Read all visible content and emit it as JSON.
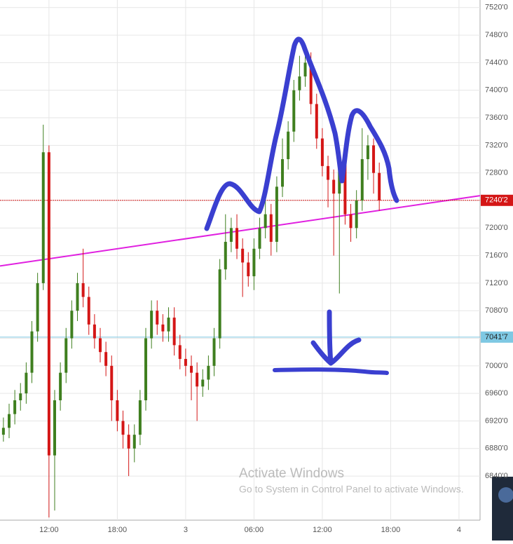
{
  "chart_data": {
    "type": "candlestick",
    "x": [
      8,
      8.5,
      9,
      9.5,
      10,
      10.5,
      11,
      11.5,
      12,
      12.5,
      13,
      13.5,
      14,
      14.5,
      15,
      15.5,
      16,
      16.5,
      17,
      17.5,
      18,
      18.5,
      19,
      19.5,
      20,
      20.5,
      21,
      21.5,
      22,
      22.5,
      23,
      23.5,
      24,
      24.5,
      25,
      25.5,
      26,
      26.5,
      27,
      27.5,
      28,
      28.5,
      29,
      29.5,
      30,
      30.5,
      31,
      31.5,
      32,
      32.5,
      33,
      33.5,
      34,
      34.5,
      35,
      35.5,
      36,
      36.5,
      37,
      37.5,
      38,
      38.5,
      39,
      39.5,
      40,
      40.5,
      41
    ],
    "open": [
      6900,
      6910,
      6930,
      6950,
      6960,
      6990,
      7050,
      7120,
      7310,
      6870,
      6950,
      6990,
      7040,
      7080,
      7120,
      7100,
      7060,
      7040,
      7020,
      7000,
      6950,
      6920,
      6900,
      6880,
      6900,
      6950,
      7040,
      7080,
      7060,
      7050,
      7070,
      7030,
      7010,
      7000,
      6990,
      6970,
      6980,
      7000,
      7040,
      7140,
      7180,
      7200,
      7170,
      7150,
      7130,
      7170,
      7200,
      7220,
      7180,
      7260,
      7300,
      7340,
      7400,
      7420,
      7440,
      7380,
      7330,
      7290,
      7270,
      7250,
      7300,
      7220,
      7200,
      7240,
      7300,
      7320,
      7280
    ],
    "high": [
      6925,
      6945,
      6965,
      6975,
      7005,
      7065,
      7135,
      7350,
      7320,
      6965,
      7005,
      7055,
      7095,
      7135,
      7170,
      7115,
      7075,
      7055,
      7035,
      7015,
      6965,
      6935,
      6915,
      6915,
      6965,
      7055,
      7095,
      7095,
      7075,
      7085,
      7085,
      7045,
      7025,
      7015,
      7005,
      6995,
      7015,
      7055,
      7155,
      7220,
      7215,
      7220,
      7185,
      7165,
      7185,
      7215,
      7250,
      7235,
      7275,
      7330,
      7355,
      7415,
      7450,
      7465,
      7455,
      7395,
      7345,
      7305,
      7285,
      7315,
      7315,
      7235,
      7255,
      7345,
      7335,
      7330,
      7295
    ],
    "low": [
      6890,
      6895,
      6915,
      6935,
      6945,
      6975,
      7035,
      7110,
      6780,
      6790,
      6935,
      6975,
      7025,
      7065,
      7085,
      7045,
      7025,
      7005,
      6985,
      6920,
      6905,
      6880,
      6840,
      6860,
      6885,
      6935,
      7025,
      7045,
      7035,
      7035,
      7015,
      6995,
      6985,
      6950,
      6920,
      6955,
      6965,
      6985,
      7025,
      7125,
      7165,
      7155,
      7100,
      7115,
      7110,
      7155,
      7185,
      7160,
      7165,
      7245,
      7285,
      7325,
      7385,
      7405,
      7365,
      7315,
      7275,
      7230,
      7160,
      7105,
      7205,
      7180,
      7185,
      7225,
      7270,
      7250,
      7225
    ],
    "close": [
      6910,
      6930,
      6950,
      6960,
      6990,
      7050,
      7120,
      7310,
      6870,
      6950,
      6990,
      7040,
      7080,
      7120,
      7100,
      7060,
      7040,
      7020,
      7000,
      6950,
      6920,
      6900,
      6880,
      6900,
      6950,
      7040,
      7080,
      7060,
      7050,
      7070,
      7030,
      7010,
      7000,
      6990,
      6970,
      6980,
      7000,
      7040,
      7140,
      7180,
      7200,
      7170,
      7150,
      7130,
      7170,
      7200,
      7220,
      7180,
      7260,
      7300,
      7340,
      7400,
      7420,
      7440,
      7380,
      7330,
      7290,
      7270,
      7250,
      7300,
      7220,
      7200,
      7240,
      7300,
      7320,
      7280,
      7240
    ],
    "up_color": "#3f7f1f",
    "down_color": "#d41616",
    "xlim": [
      7.7,
      49.85
    ],
    "xticks": [
      {
        "value": 12,
        "label": "12:00"
      },
      {
        "value": 18,
        "label": "18:00"
      },
      {
        "value": 24,
        "label": "3"
      },
      {
        "value": 30,
        "label": "06:00"
      },
      {
        "value": 36,
        "label": "12:00"
      },
      {
        "value": 42,
        "label": "18:00"
      },
      {
        "value": 48,
        "label": "4"
      }
    ],
    "ylim": [
      6776,
      7531
    ],
    "yticks": [
      {
        "value": 6840,
        "label": "6840'0"
      },
      {
        "value": 6880,
        "label": "6880'0"
      },
      {
        "value": 6920,
        "label": "6920'0"
      },
      {
        "value": 6960,
        "label": "6960'0"
      },
      {
        "value": 7000,
        "label": "7000'0"
      },
      {
        "value": 7040,
        "label": "7040'0"
      },
      {
        "value": 7080,
        "label": "7080'0"
      },
      {
        "value": 7120,
        "label": "7120'0"
      },
      {
        "value": 7160,
        "label": "7160'0"
      },
      {
        "value": 7200,
        "label": "7200'0"
      },
      {
        "value": 7240,
        "label": "7240'0"
      },
      {
        "value": 7280,
        "label": "7280'0"
      },
      {
        "value": 7320,
        "label": "7320'0"
      },
      {
        "value": 7360,
        "label": "7360'0"
      },
      {
        "value": 7400,
        "label": "7400'0"
      },
      {
        "value": 7440,
        "label": "7440'0"
      },
      {
        "value": 7480,
        "label": "7480'0"
      },
      {
        "value": 7520,
        "label": "7520'0"
      }
    ],
    "grid": true,
    "price_lines": [
      {
        "value": 7240.2,
        "label": "7240'2",
        "color": "#d41616"
      },
      {
        "value": 7041.7,
        "label": "7041'7",
        "color": "#7ec8e3"
      }
    ],
    "trend_line": {
      "x": [
        7.7,
        49.85
      ],
      "y": [
        7145,
        7247
      ],
      "color": "#e020e0"
    },
    "watermark": {
      "title": "Activate Windows",
      "subtitle": "Go to System in Control Panel to activate Windows."
    }
  }
}
